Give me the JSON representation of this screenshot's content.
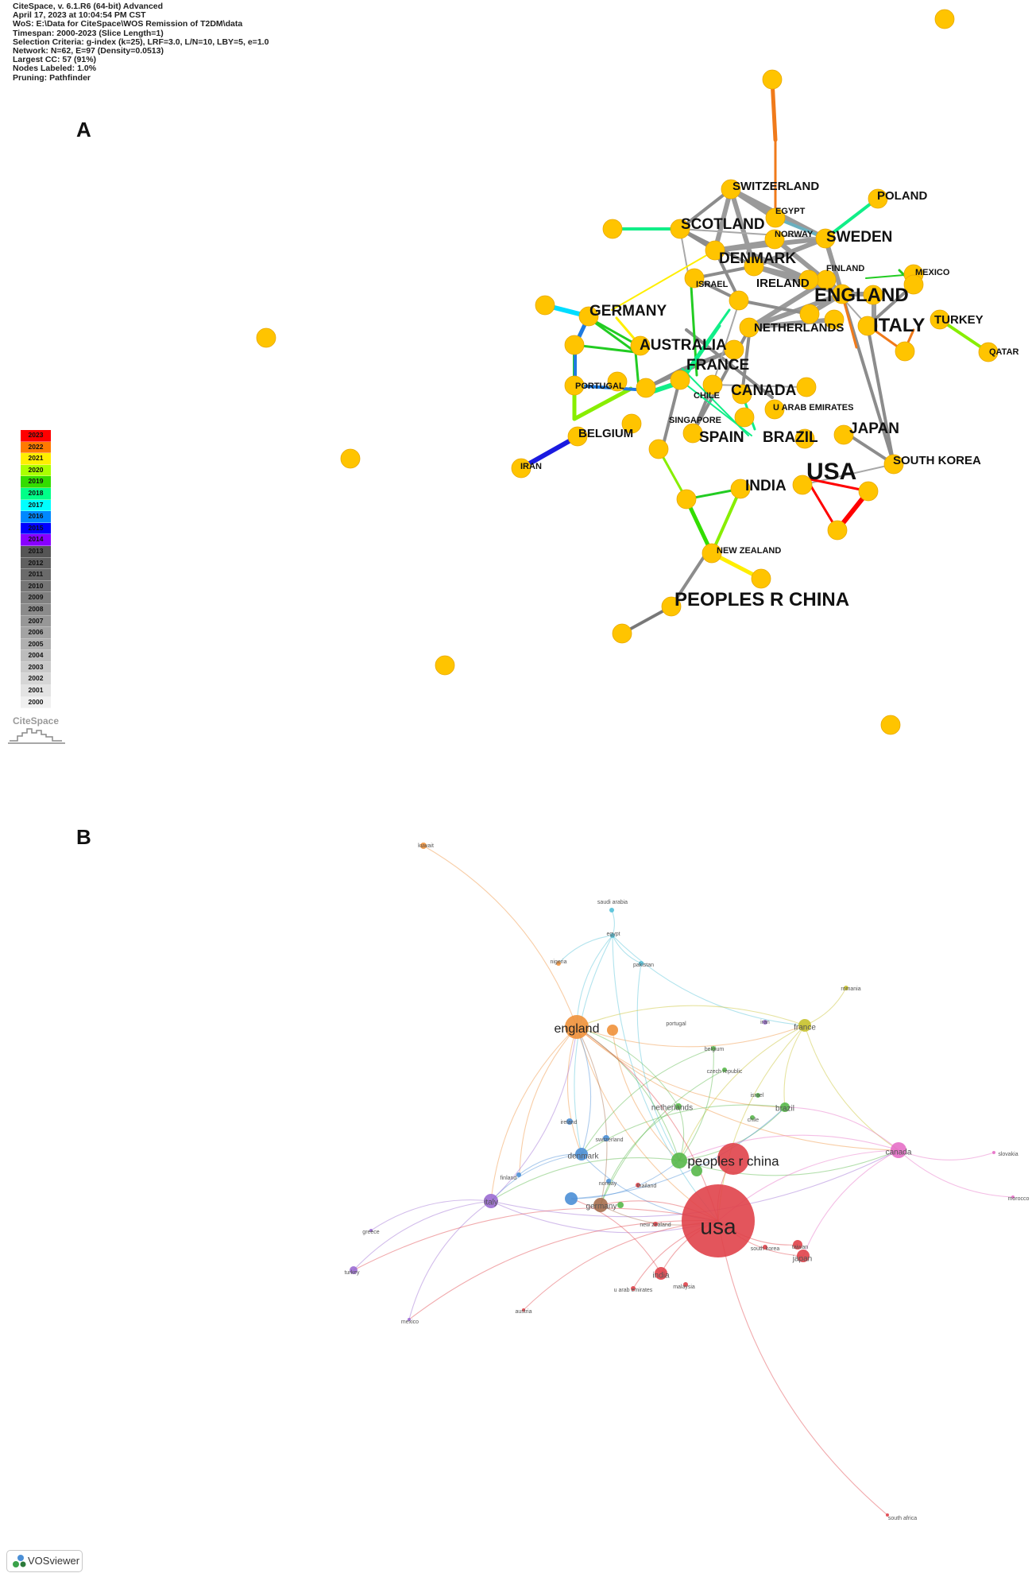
{
  "panel_a": {
    "label": "A",
    "header_lines": [
      "CiteSpace, v. 6.1.R6 (64-bit) Advanced",
      "April 17, 2023 at 10:04:54 PM CST",
      "WoS: E:\\Data for CiteSpace\\WOS Remission of T2DM\\data",
      "Timespan: 2000-2023 (Slice Length=1)",
      "Selection Criteria: g-index (k=25), LRF=3.0, L/N=10, LBY=5, e=1.0",
      "Network: N=62, E=97 (Density=0.0513)",
      "Largest CC: 57 (91%)",
      "Nodes Labeled: 1.0%",
      "Pruning: Pathfinder"
    ],
    "legend_years": [
      "2023",
      "2022",
      "2021",
      "2020",
      "2019",
      "2018",
      "2017",
      "2016",
      "2015",
      "2014",
      "2013",
      "2012",
      "2011",
      "2010",
      "2009",
      "2008",
      "2007",
      "2006",
      "2005",
      "2004",
      "2003",
      "2002",
      "2001",
      "2000"
    ],
    "legend_colors": [
      "#ff0000",
      "#ff7a00",
      "#ffee00",
      "#aaff00",
      "#33dd00",
      "#00ff88",
      "#00ffff",
      "#0088ff",
      "#0000ff",
      "#8800ff",
      "#555555",
      "#606060",
      "#6a6a6a",
      "#757575",
      "#808080",
      "#8b8b8b",
      "#979797",
      "#a3a3a3",
      "#afafaf",
      "#bcbcbc",
      "#c9c9c9",
      "#d6d6d6",
      "#e3e3e3",
      "#f0f0f0"
    ],
    "logo_text": "CiteSpace",
    "node_color": "#ffc400",
    "labels": [
      {
        "text": "SWITZERLAND",
        "size": "m"
      },
      {
        "text": "POLAND",
        "size": "m"
      },
      {
        "text": "EGYPT",
        "size": "s"
      },
      {
        "text": "SCOTLAND",
        "size": "l"
      },
      {
        "text": "NORWAY",
        "size": "s"
      },
      {
        "text": "SWEDEN",
        "size": "l"
      },
      {
        "text": "DENMARK",
        "size": "l"
      },
      {
        "text": "FINLAND",
        "size": "s"
      },
      {
        "text": "MEXICO",
        "size": "s"
      },
      {
        "text": "ISRAEL",
        "size": "s"
      },
      {
        "text": "IRELAND",
        "size": "m"
      },
      {
        "text": "ENGLAND",
        "size": "xl"
      },
      {
        "text": "GERMANY",
        "size": "l"
      },
      {
        "text": "ITALY",
        "size": "xl"
      },
      {
        "text": "TURKEY",
        "size": "m"
      },
      {
        "text": "NETHERLANDS",
        "size": "m"
      },
      {
        "text": "AUSTRALIA",
        "size": "l"
      },
      {
        "text": "QATAR",
        "size": "s"
      },
      {
        "text": "FRANCE",
        "size": "l"
      },
      {
        "text": "PORTUGAL",
        "size": "s"
      },
      {
        "text": "CANADA",
        "size": "l"
      },
      {
        "text": "CHILE",
        "size": "s"
      },
      {
        "text": "U ARAB EMIRATES",
        "size": "s"
      },
      {
        "text": "SINGAPORE",
        "size": "s"
      },
      {
        "text": "JAPAN",
        "size": "l"
      },
      {
        "text": "BELGIUM",
        "size": "m"
      },
      {
        "text": "SPAIN",
        "size": "l"
      },
      {
        "text": "BRAZIL",
        "size": "l"
      },
      {
        "text": "SOUTH KOREA",
        "size": "m"
      },
      {
        "text": "IRAN",
        "size": "s"
      },
      {
        "text": "USA",
        "size": "xxl"
      },
      {
        "text": "INDIA",
        "size": "l"
      },
      {
        "text": "NEW ZEALAND",
        "size": "s"
      },
      {
        "text": "PEOPLES R CHINA",
        "size": "xl"
      }
    ]
  },
  "panel_b": {
    "label": "B",
    "badge_text": "VOSviewer",
    "cluster_colors": {
      "red": "#e0434a",
      "green": "#58b84a",
      "blue": "#4b8fd6",
      "purple": "#9b6bd3",
      "orange": "#f0913a",
      "yellow": "#c8c22c",
      "cyan": "#52c0d8",
      "pink": "#e66fc6",
      "brown": "#a66e4e"
    },
    "labels": [
      {
        "text": "kuwait",
        "size": "s"
      },
      {
        "text": "saudi arabia",
        "size": "s"
      },
      {
        "text": "egypt",
        "size": "s"
      },
      {
        "text": "nigeria",
        "size": "s"
      },
      {
        "text": "pakistan",
        "size": "s"
      },
      {
        "text": "romania",
        "size": "s"
      },
      {
        "text": "england",
        "size": "l"
      },
      {
        "text": "portugal",
        "size": "s"
      },
      {
        "text": "iran",
        "size": "s"
      },
      {
        "text": "france",
        "size": "m"
      },
      {
        "text": "belgium",
        "size": "s"
      },
      {
        "text": "czech republic",
        "size": "s"
      },
      {
        "text": "israel",
        "size": "s"
      },
      {
        "text": "netherlands",
        "size": "m"
      },
      {
        "text": "brazil",
        "size": "m"
      },
      {
        "text": "chile",
        "size": "s"
      },
      {
        "text": "ireland",
        "size": "s"
      },
      {
        "text": "switzerland",
        "size": "s"
      },
      {
        "text": "canada",
        "size": "m"
      },
      {
        "text": "slovakia",
        "size": "s"
      },
      {
        "text": "denmark",
        "size": "m"
      },
      {
        "text": "peoples r china",
        "size": "xl"
      },
      {
        "text": "finland",
        "size": "s"
      },
      {
        "text": "norway",
        "size": "s"
      },
      {
        "text": "thailand",
        "size": "s"
      },
      {
        "text": "morocco",
        "size": "s"
      },
      {
        "text": "italy",
        "size": "m"
      },
      {
        "text": "germany",
        "size": "m"
      },
      {
        "text": "usa",
        "size": "xxl"
      },
      {
        "text": "new zealand",
        "size": "s"
      },
      {
        "text": "greece",
        "size": "s"
      },
      {
        "text": "south korea",
        "size": "s"
      },
      {
        "text": "taiwan",
        "size": "s"
      },
      {
        "text": "japan",
        "size": "m"
      },
      {
        "text": "india",
        "size": "m"
      },
      {
        "text": "malaysia",
        "size": "s"
      },
      {
        "text": "turkey",
        "size": "s"
      },
      {
        "text": "u arab emirates",
        "size": "s"
      },
      {
        "text": "austria",
        "size": "s"
      },
      {
        "text": "mexico",
        "size": "s"
      },
      {
        "text": "south africa",
        "size": "s"
      }
    ]
  }
}
